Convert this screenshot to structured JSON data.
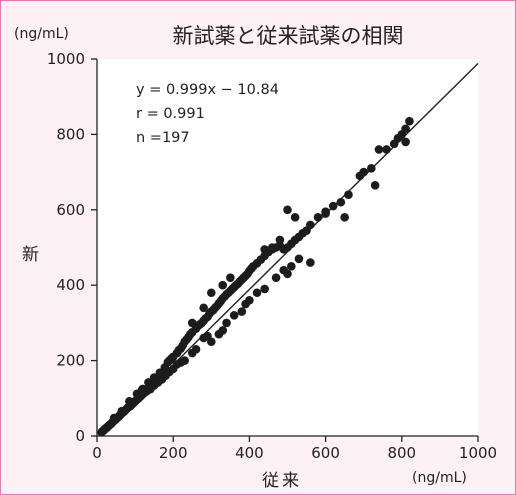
{
  "chart_data": {
    "type": "scatter",
    "title": "新試薬と従来試薬の相関",
    "xlabel": "従来",
    "ylabel": "新",
    "x_unit": "(ng/mL)",
    "y_unit": "(ng/mL)",
    "xlim": [
      0,
      1000
    ],
    "ylim": [
      0,
      1000
    ],
    "xticks": [
      0,
      200,
      400,
      600,
      800,
      1000
    ],
    "yticks": [
      0,
      200,
      400,
      600,
      800,
      1000
    ],
    "grid": false,
    "annotations": [
      "y = 0.999x − 10.84",
      "r = 0.991",
      "n =197"
    ],
    "regression": {
      "slope": 0.999,
      "intercept": -10.84
    },
    "series": [
      {
        "points": [
          [
            12,
            10
          ],
          [
            15,
            13
          ],
          [
            18,
            15
          ],
          [
            20,
            18
          ],
          [
            22,
            19
          ],
          [
            25,
            22
          ],
          [
            27,
            23
          ],
          [
            30,
            27
          ],
          [
            32,
            28
          ],
          [
            35,
            31
          ],
          [
            38,
            33
          ],
          [
            40,
            36
          ],
          [
            42,
            38
          ],
          [
            45,
            41
          ],
          [
            48,
            43
          ],
          [
            50,
            46
          ],
          [
            52,
            47
          ],
          [
            55,
            50
          ],
          [
            58,
            52
          ],
          [
            60,
            55
          ],
          [
            62,
            57
          ],
          [
            65,
            60
          ],
          [
            68,
            62
          ],
          [
            70,
            65
          ],
          [
            72,
            66
          ],
          [
            75,
            69
          ],
          [
            78,
            72
          ],
          [
            80,
            74
          ],
          [
            82,
            76
          ],
          [
            85,
            78
          ],
          [
            88,
            80
          ],
          [
            90,
            83
          ],
          [
            92,
            84
          ],
          [
            95,
            87
          ],
          [
            98,
            90
          ],
          [
            100,
            92
          ],
          [
            102,
            94
          ],
          [
            105,
            97
          ],
          [
            108,
            99
          ],
          [
            110,
            101
          ],
          [
            112,
            104
          ],
          [
            115,
            106
          ],
          [
            118,
            109
          ],
          [
            120,
            112
          ],
          [
            122,
            113
          ],
          [
            125,
            116
          ],
          [
            128,
            118
          ],
          [
            130,
            121
          ],
          [
            132,
            122
          ],
          [
            135,
            126
          ],
          [
            138,
            129
          ],
          [
            140,
            131
          ],
          [
            142,
            133
          ],
          [
            145,
            136
          ],
          [
            148,
            139
          ],
          [
            150,
            141
          ],
          [
            152,
            143
          ],
          [
            155,
            146
          ],
          [
            158,
            149
          ],
          [
            160,
            151
          ],
          [
            163,
            154
          ],
          [
            165,
            157
          ],
          [
            168,
            160
          ],
          [
            170,
            162
          ],
          [
            173,
            165
          ],
          [
            175,
            168
          ],
          [
            178,
            171
          ],
          [
            180,
            173
          ],
          [
            45,
            48
          ],
          [
            65,
            66
          ],
          [
            85,
            92
          ],
          [
            105,
            112
          ],
          [
            118,
            122
          ],
          [
            135,
            142
          ],
          [
            150,
            155
          ],
          [
            165,
            168
          ],
          [
            178,
            182
          ],
          [
            186,
            196
          ],
          [
            190,
            200
          ],
          [
            195,
            205
          ],
          [
            200,
            210
          ],
          [
            210,
            220
          ],
          [
            215,
            228
          ],
          [
            220,
            232
          ],
          [
            225,
            240
          ],
          [
            230,
            250
          ],
          [
            235,
            256
          ],
          [
            240,
            262
          ],
          [
            245,
            270
          ],
          [
            250,
            275
          ],
          [
            260,
            285
          ],
          [
            265,
            292
          ],
          [
            270,
            296
          ],
          [
            275,
            300
          ],
          [
            280,
            306
          ],
          [
            285,
            312
          ],
          [
            290,
            316
          ],
          [
            295,
            324
          ],
          [
            300,
            330
          ],
          [
            305,
            334
          ],
          [
            310,
            340
          ],
          [
            315,
            345
          ],
          [
            320,
            352
          ],
          [
            325,
            358
          ],
          [
            330,
            365
          ],
          [
            335,
            370
          ],
          [
            340,
            376
          ],
          [
            345,
            380
          ],
          [
            350,
            385
          ],
          [
            355,
            390
          ],
          [
            360,
            395
          ],
          [
            365,
            400
          ],
          [
            370,
            404
          ],
          [
            375,
            410
          ],
          [
            380,
            415
          ],
          [
            385,
            420
          ],
          [
            390,
            425
          ],
          [
            395,
            430
          ],
          [
            400,
            438
          ],
          [
            405,
            444
          ],
          [
            410,
            450
          ],
          [
            420,
            458
          ],
          [
            430,
            468
          ],
          [
            440,
            478
          ],
          [
            450,
            488
          ],
          [
            460,
            495
          ],
          [
            470,
            500
          ],
          [
            480,
            505
          ],
          [
            490,
            495
          ],
          [
            500,
            500
          ],
          [
            510,
            510
          ],
          [
            520,
            520
          ],
          [
            530,
            528
          ],
          [
            540,
            538
          ],
          [
            550,
            545
          ],
          [
            560,
            560
          ],
          [
            580,
            580
          ],
          [
            600,
            595
          ],
          [
            620,
            610
          ],
          [
            640,
            620
          ],
          [
            660,
            640
          ],
          [
            690,
            690
          ],
          [
            720,
            710
          ],
          [
            760,
            760
          ],
          [
            780,
            775
          ],
          [
            790,
            790
          ],
          [
            800,
            800
          ],
          [
            810,
            815
          ],
          [
            820,
            835
          ],
          [
            120,
            125
          ],
          [
            130,
            118
          ],
          [
            140,
            124
          ],
          [
            150,
            134
          ],
          [
            160,
            142
          ],
          [
            170,
            150
          ],
          [
            180,
            160
          ],
          [
            190,
            170
          ],
          [
            200,
            178
          ],
          [
            210,
            190
          ],
          [
            220,
            195
          ],
          [
            230,
            200
          ],
          [
            250,
            220
          ],
          [
            260,
            230
          ],
          [
            280,
            260
          ],
          [
            290,
            265
          ],
          [
            300,
            250
          ],
          [
            320,
            270
          ],
          [
            330,
            280
          ],
          [
            340,
            300
          ],
          [
            360,
            320
          ],
          [
            380,
            330
          ],
          [
            390,
            350
          ],
          [
            400,
            360
          ],
          [
            420,
            380
          ],
          [
            440,
            390
          ],
          [
            470,
            420
          ],
          [
            490,
            440
          ],
          [
            500,
            430
          ],
          [
            510,
            450
          ],
          [
            530,
            470
          ],
          [
            560,
            460
          ],
          [
            480,
            520
          ],
          [
            500,
            600
          ],
          [
            520,
            580
          ],
          [
            600,
            590
          ],
          [
            650,
            580
          ],
          [
            700,
            700
          ],
          [
            730,
            665
          ],
          [
            740,
            760
          ],
          [
            810,
            780
          ],
          [
            440,
            495
          ],
          [
            460,
            500
          ],
          [
            300,
            380
          ],
          [
            280,
            340
          ],
          [
            250,
            300
          ],
          [
            350,
            420
          ],
          [
            330,
            400
          ]
        ]
      }
    ]
  }
}
